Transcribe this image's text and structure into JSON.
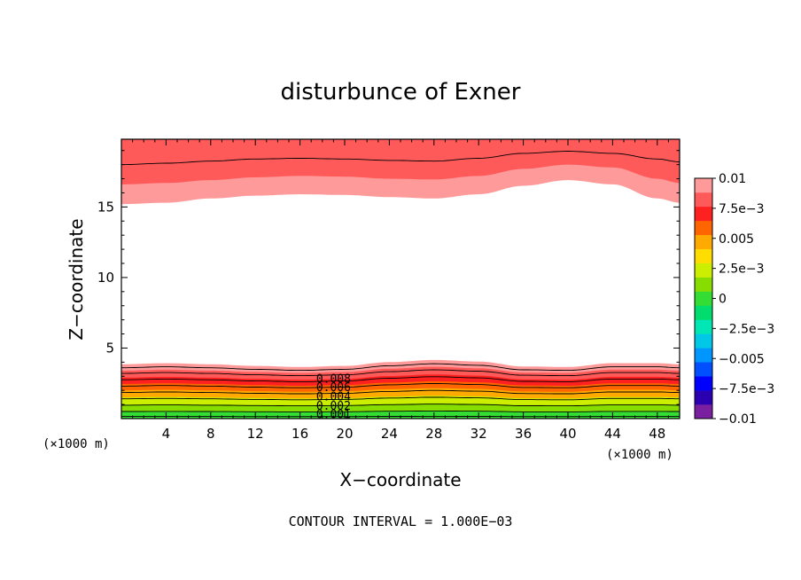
{
  "chart_data": {
    "type": "contour",
    "title": "disturbunce of Exner",
    "xlabel": "X−coordinate",
    "ylabel": "Z−coordinate",
    "x_unit": "(×1000 m)",
    "y_unit": "(×1000 m)",
    "xlim": [
      0,
      50
    ],
    "ylim": [
      0,
      19.8
    ],
    "x_ticks": [
      4,
      8,
      12,
      16,
      20,
      24,
      28,
      32,
      36,
      40,
      44,
      48
    ],
    "x_tick_labels": [
      "4",
      "8",
      "12",
      "16",
      "20",
      "24",
      "28",
      "32",
      "36",
      "40",
      "44",
      "48"
    ],
    "y_ticks": [
      5,
      10,
      15
    ],
    "y_tick_labels": [
      "5",
      "10",
      "15"
    ],
    "contour_interval_text": "CONTOUR INTERVAL = 1.000E−03",
    "contour_labels": [
      "0.008",
      "0.006",
      "0.004",
      "0.002",
      "0.001"
    ],
    "contour_label_x": 19,
    "contour_label_z": [
      2.85,
      2.25,
      1.6,
      0.95,
      0.35
    ],
    "colorbar": {
      "levels": [
        -0.01,
        -0.00875,
        -0.0075,
        -0.00625,
        -0.005,
        -0.00375,
        -0.0025,
        -0.00125,
        0,
        0.00125,
        0.0025,
        0.00375,
        0.005,
        0.00625,
        0.0075,
        0.00875,
        0.01
      ],
      "colors": [
        "#7a1fa0",
        "#2a00b0",
        "#0000ff",
        "#0050ff",
        "#0096ff",
        "#00c8e6",
        "#00e6b4",
        "#00dc6e",
        "#33dd33",
        "#88dd00",
        "#ccee00",
        "#ffdd00",
        "#ffaa00",
        "#ff6600",
        "#ff2020",
        "#ff5a5a",
        "#ff9a9a"
      ],
      "tick_values": [
        0.01,
        0.0075,
        0.005,
        0.0025,
        0,
        -0.0025,
        -0.005,
        -0.0075,
        -0.01
      ],
      "tick_labels": [
        "0.01",
        "7.5e−3",
        "0.005",
        "2.5e−3",
        "0",
        "−2.5e−3",
        "−0.005",
        "−7.5e−3",
        "−0.01"
      ]
    },
    "series": [
      {
        "role": "upper_bands",
        "band_min": [
          0.00875,
          0.0075
        ],
        "band_colors": [
          "#ff9a9a",
          "#ff5a5a"
        ],
        "fill_top": 19.8,
        "boundaries": [
          {
            "x": [
              0,
              4,
              8,
              12,
              16,
              20,
              24,
              28,
              32,
              36,
              40,
              44,
              48,
              50
            ],
            "z": [
              15.2,
              15.3,
              15.6,
              15.8,
              15.9,
              15.85,
              15.7,
              15.6,
              15.9,
              16.5,
              16.9,
              16.6,
              15.6,
              15.3
            ]
          },
          {
            "x": [
              0,
              4,
              8,
              12,
              16,
              20,
              24,
              28,
              32,
              36,
              40,
              44,
              48,
              50
            ],
            "z": [
              16.6,
              16.7,
              16.9,
              17.1,
              17.2,
              17.15,
              17.0,
              16.95,
              17.2,
              17.7,
              18.0,
              17.8,
              17.0,
              16.7
            ]
          }
        ],
        "contour_lines": [
          {
            "x": [
              0,
              4,
              8,
              12,
              16,
              20,
              24,
              28,
              32,
              36,
              40,
              44,
              48,
              50
            ],
            "z": [
              18.0,
              18.1,
              18.25,
              18.4,
              18.45,
              18.4,
              18.3,
              18.25,
              18.45,
              18.8,
              18.95,
              18.8,
              18.4,
              18.2
            ]
          }
        ]
      },
      {
        "role": "lower_bands",
        "band_min": [
          0.00875,
          0.0075,
          0.00625,
          0.005,
          0.00375,
          0.0025,
          0.00125,
          0
        ],
        "band_colors": [
          "#ff9a9a",
          "#ff5a5a",
          "#ff2020",
          "#ff6600",
          "#ffaa00",
          "#ccee00",
          "#88dd00",
          "#33dd33"
        ],
        "boundary_heights_at_x16": [
          3.85,
          3.4,
          2.9,
          2.45,
          2.0,
          1.5,
          1.0,
          0.5
        ],
        "wave_x": [
          0,
          4,
          8,
          12,
          16,
          20,
          24,
          28,
          32,
          36,
          40,
          44,
          48,
          50
        ],
        "wave_shape": [
          1.0,
          1.02,
          1.0,
          0.97,
          0.95,
          0.97,
          1.04,
          1.08,
          1.05,
          0.96,
          0.95,
          1.02,
          1.02,
          1.0
        ],
        "contour_line_heights_at_x16": [
          3.6,
          3.2,
          2.75,
          2.3,
          1.85,
          1.4,
          0.95,
          0.5,
          0.15
        ]
      }
    ]
  }
}
